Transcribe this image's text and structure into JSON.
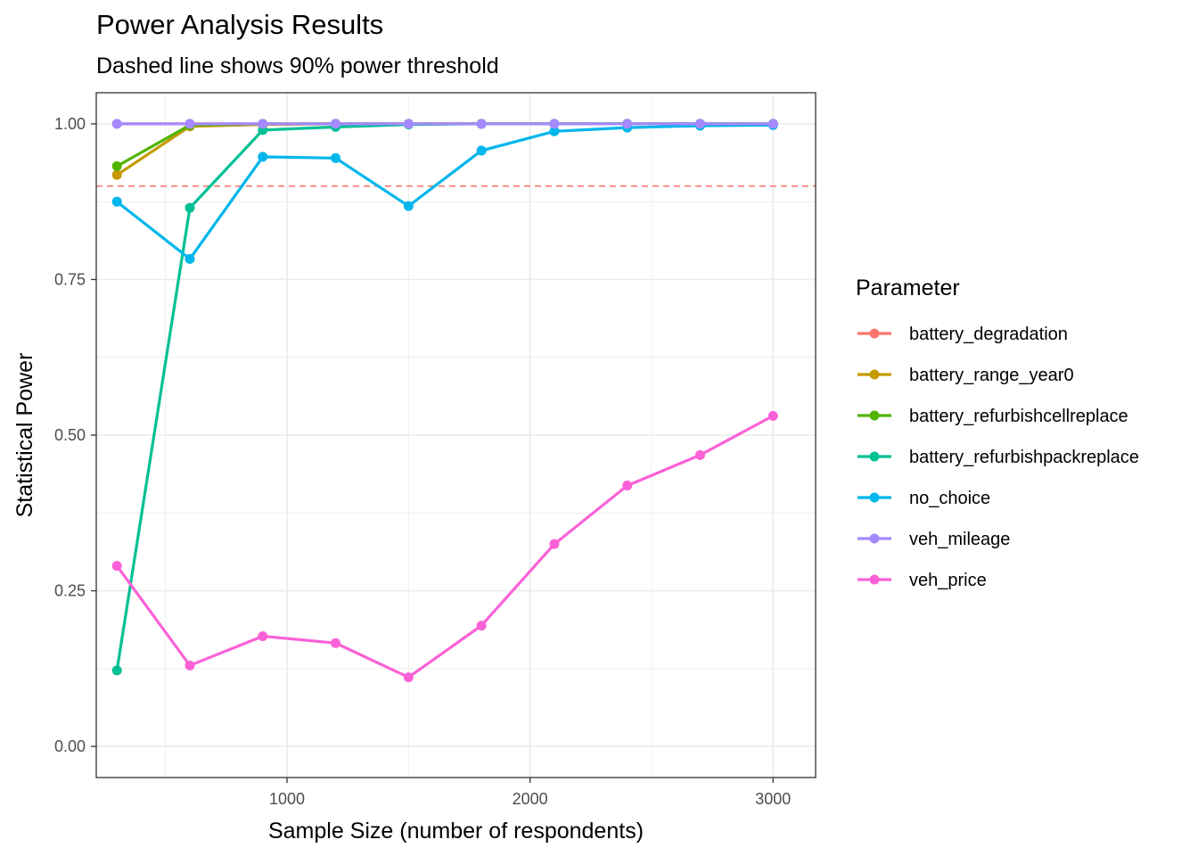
{
  "chart_data": {
    "type": "line",
    "title": "Power Analysis Results",
    "subtitle": "Dashed line shows 90% power threshold",
    "xlabel": "Sample Size (number of respondents)",
    "ylabel": "Statistical Power",
    "xlim": [
      215,
      3175
    ],
    "ylim": [
      -0.05,
      1.05
    ],
    "x_ticks": [
      1000,
      2000,
      3000
    ],
    "x_tick_labels": [
      "1000",
      "2000",
      "3000"
    ],
    "y_ticks": [
      0.0,
      0.25,
      0.5,
      0.75,
      1.0
    ],
    "y_tick_labels": [
      "0.00",
      "0.25",
      "0.50",
      "0.75",
      "1.00"
    ],
    "grid": true,
    "threshold": {
      "value": 0.9,
      "color": "#F8766D",
      "style": "dashed"
    },
    "legend": {
      "title": "Parameter",
      "position": "right"
    },
    "x": [
      300,
      600,
      900,
      1200,
      1500,
      1800,
      2100,
      2400,
      2700,
      3000
    ],
    "series": [
      {
        "name": "battery_degradation",
        "color": "#F8766D",
        "values": [
          1.0,
          1.0,
          1.0,
          1.0,
          1.0,
          1.0,
          1.0,
          1.0,
          1.0,
          1.0
        ]
      },
      {
        "name": "battery_range_year0",
        "color": "#C49A00",
        "values": [
          0.918,
          0.996,
          0.999,
          1.0,
          1.0,
          1.0,
          1.0,
          1.0,
          1.0,
          1.0
        ]
      },
      {
        "name": "battery_refurbishcellreplace",
        "color": "#53B400",
        "values": [
          0.932,
          0.998,
          1.0,
          1.0,
          1.0,
          1.0,
          1.0,
          1.0,
          1.0,
          1.0
        ]
      },
      {
        "name": "battery_refurbishpackreplace",
        "color": "#00C094",
        "values": [
          0.122,
          0.865,
          0.99,
          0.995,
          0.999,
          1.0,
          1.0,
          1.0,
          1.0,
          1.0
        ]
      },
      {
        "name": "no_choice",
        "color": "#00B6EB",
        "values": [
          0.875,
          0.783,
          0.947,
          0.945,
          0.868,
          0.957,
          0.988,
          0.994,
          0.997,
          0.998
        ]
      },
      {
        "name": "veh_mileage",
        "color": "#A58AFF",
        "values": [
          1.0,
          1.0,
          1.0,
          1.0,
          1.0,
          1.0,
          1.0,
          1.0,
          1.0,
          1.0
        ]
      },
      {
        "name": "veh_price",
        "color": "#FB61D7",
        "values": [
          0.29,
          0.13,
          0.177,
          0.166,
          0.111,
          0.194,
          0.325,
          0.419,
          0.468,
          0.531
        ]
      }
    ]
  }
}
